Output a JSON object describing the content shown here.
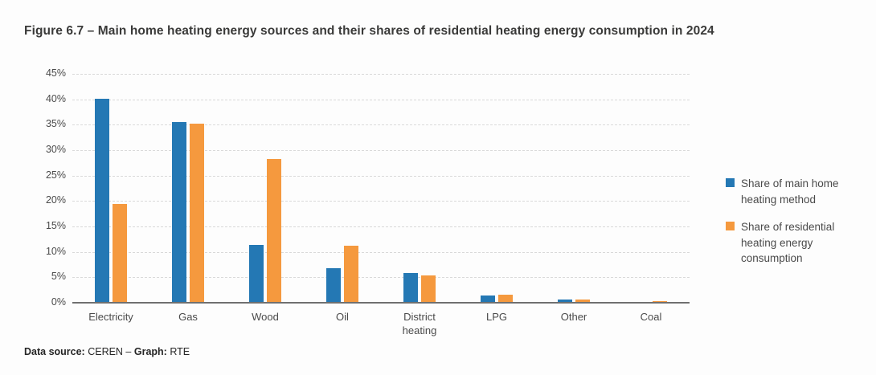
{
  "figure": {
    "footer_parts": [
      {
        "text": "Data source:",
        "bold": true
      },
      {
        "text": " CEREN – ",
        "bold": false
      },
      {
        "text": "Graph:",
        "bold": true
      },
      {
        "text": " RTE",
        "bold": false
      }
    ]
  },
  "colors": {
    "series_blue": "#2478b4",
    "series_orange": "#f5993e",
    "gridline": "#d9d9d9",
    "axis_line": "#707070",
    "tick_text": "#4a4a4a",
    "title_text": "#3a3a39"
  },
  "chart_data": {
    "type": "bar",
    "title": "Figure 6.7 – Main home heating energy sources and their shares of residential heating energy consumption in 2024",
    "categories": [
      "Electricity",
      "Gas",
      "Wood",
      "Oil",
      "District heating",
      "LPG",
      "Other",
      "Coal"
    ],
    "series": [
      {
        "name": "Share of main home heating method",
        "color": "#2478b4",
        "values": [
          40,
          35.3,
          11.2,
          6.7,
          5.7,
          1.3,
          0.5,
          0
        ]
      },
      {
        "name": "Share of residential heating energy consumption",
        "color": "#f5993e",
        "values": [
          19.2,
          35,
          28.1,
          11,
          5.2,
          1.5,
          0.4,
          0.2
        ]
      }
    ],
    "ylabel": "",
    "xlabel": "",
    "ylim": [
      0,
      45
    ],
    "yticks": [
      0,
      5,
      10,
      15,
      20,
      25,
      30,
      35,
      40,
      45
    ],
    "ytick_format": "{v}%",
    "grid": "horizontal-dashed",
    "legend_position": "right"
  }
}
